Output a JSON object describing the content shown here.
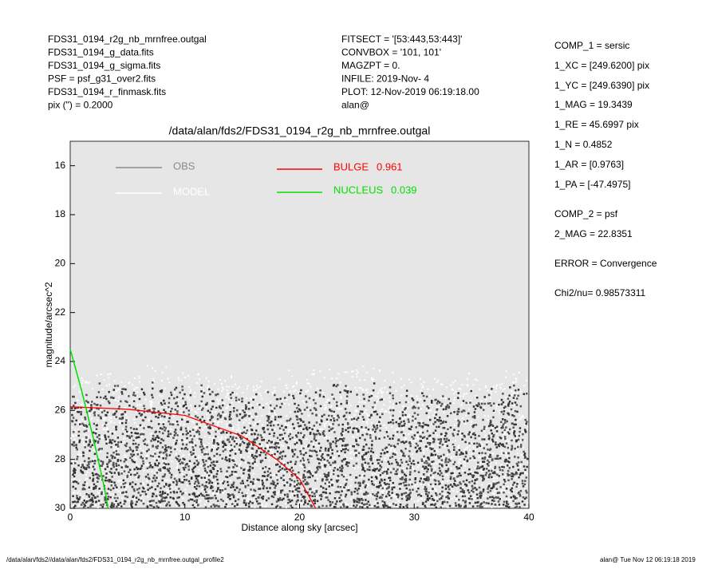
{
  "header_left": [
    "FDS31_0194_r2g_nb_mrnfree.outgal",
    "FDS31_0194_g_data.fits",
    "FDS31_0194_g_sigma.fits",
    "PSF     = psf_g31_over2.fits",
    "FDS31_0194_r_finmask.fits",
    "pix (\") =  0.2000"
  ],
  "header_mid": [
    "FITSECT = '[53:443,53:443]'",
    "CONVBOX = '101, 101'",
    "MAGZPT  =                0.",
    "INFILE: 2019-Nov- 4",
    "PLOT: 12-Nov-2019 06:19:18.00",
    "alan@"
  ],
  "params": [
    "COMP_1  = sersic",
    "1_XC    = [249.6200] pix",
    "1_YC    = [249.6390] pix",
    "1_MAG   = 19.3439",
    "1_RE    = 45.6997 pix",
    "1_N     = 0.4852",
    "1_AR    = [0.9763]",
    "1_PA    = [-47.4975]",
    "COMP_2  = psf",
    "2_MAG   = 22.8351",
    "ERROR   = Convergence",
    "Chi2/nu=      0.98573311"
  ],
  "footer_left": "/data/alan/fds2//data/alan/fds2/FDS31_0194_r2g_nb_mrnfree.outgal_profile2",
  "footer_right": "alan@  Tue Nov 12 06:19:18 2019",
  "chart_data": {
    "type": "line",
    "title": "/data/alan/fds2/FDS31_0194_r2g_nb_mrnfree.outgal",
    "x_label": "Distance along sky [arcsec]",
    "y_label": "magnitude/arcsec^2",
    "xlim": [
      0,
      40
    ],
    "xticks": [
      0,
      10,
      20,
      30,
      40
    ],
    "ylim": [
      30,
      15
    ],
    "yticks": [
      16,
      18,
      20,
      22,
      24,
      26,
      28,
      30
    ],
    "legend_points": [
      {
        "name": "OBS",
        "color": "#8c8c8c"
      },
      {
        "name": "MODEL",
        "color": "#ffffff"
      }
    ],
    "series": [
      {
        "name": "BULGE",
        "fraction": "0.961",
        "color": "#ff0000",
        "x": [
          0,
          5,
          10,
          15,
          18,
          20,
          21.4
        ],
        "values": [
          25.85,
          25.95,
          26.2,
          27.05,
          28.0,
          28.8,
          30
        ]
      },
      {
        "name": "NUCLEUS",
        "fraction": "0.039",
        "color": "#00e000",
        "x": [
          0,
          0.3,
          1,
          2,
          3,
          3.3
        ],
        "values": [
          23.5,
          24,
          25.2,
          27.1,
          29.2,
          30
        ]
      }
    ]
  }
}
